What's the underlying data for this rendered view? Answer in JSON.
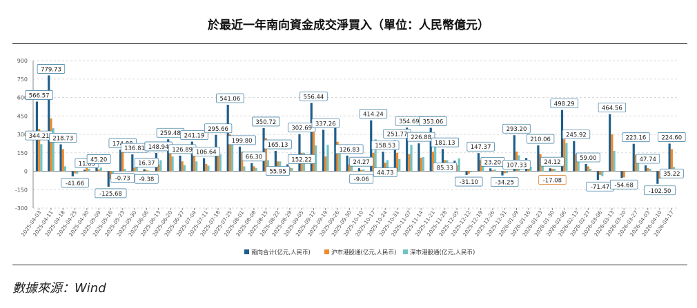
{
  "header": {
    "title": "於最近一年南向資金成交淨買入（單位：人民幣億元）"
  },
  "footer": {
    "source": "數據來源：Wind"
  },
  "colors": {
    "total": "#1f5e8a",
    "sh": "#f0892a",
    "sz": "#6fc5c5",
    "grid": "#d9d9d9",
    "axis": "#888888",
    "label_border": "#4a86a8",
    "neg_label_border": "#e0893a"
  },
  "chart_data": {
    "type": "bar",
    "ylim": [
      -300,
      900
    ],
    "yticks": [
      -300,
      -150,
      0,
      150,
      300,
      450,
      600,
      750,
      900
    ],
    "grid": true,
    "legend_position": "bottom-center",
    "categories": [
      "2025-04-03",
      "2025-04-11",
      "2025-04-18",
      "2025-04-25",
      "2025-04-30",
      "2025-05-09",
      "2025-05-16",
      "2025-05-23",
      "2025-05-30",
      "2025-06-06",
      "2025-06-13",
      "2025-06-20",
      "2025-06-27",
      "2025-07-04",
      "2025-07-11",
      "2025-07-18",
      "2025-07-25",
      "2025-08-01",
      "2025-08-08",
      "2025-08-15",
      "2025-08-22",
      "2025-08-29",
      "2025-09-05",
      "2025-09-12",
      "2025-09-19",
      "2025-09-26",
      "2025-09-30",
      "2025-10-10",
      "2025-10-17",
      "2025-10-24",
      "2025-10-31",
      "2025-11-07",
      "2025-11-14",
      "2025-11-21",
      "2025-11-28",
      "2025-12-05",
      "2025-12-12",
      "2025-12-19",
      "2025-12-26",
      "2025-12-31",
      "2026-01-09",
      "2026-01-16",
      "2026-01-23",
      "2026-01-30",
      "2026-02-06",
      "2026-02-13",
      "2026-02-27",
      "2026-03-06",
      "2026-03-13",
      "2026-03-20",
      "2026-03-27",
      "2026-04-03",
      "2026-04-10",
      "2026-04-17"
    ],
    "series": [
      {
        "name": "南向合计(亿元,人民币)",
        "values": [
          566.57,
          779.73,
          218.73,
          -41.66,
          11.85,
          45.2,
          -125.68,
          174.88,
          136.81,
          16.37,
          148.94,
          259.48,
          126.89,
          241.19,
          106.64,
          295.66,
          541.06,
          199.8,
          66.3,
          350.72,
          165.13,
          55.95,
          302.69,
          556.44,
          337.26,
          400,
          126.83,
          24.27,
          414.24,
          158.53,
          251.77,
          354.69,
          226.88,
          353.06,
          181.13,
          85.33,
          -31.1,
          147.37,
          23.2,
          -34.25,
          293.2,
          107.33,
          210.06,
          24.12,
          498.29,
          245.92,
          59.0,
          -71.47,
          464.56,
          -54.68,
          223.16,
          47.74,
          -102.5,
          224.6
        ]
      },
      {
        "name": "沪市港股通(亿元,人民币)",
        "values": [
          344.21,
          430,
          180,
          -18,
          35,
          15,
          -65,
          165,
          30,
          10,
          55,
          150,
          80,
          170,
          60,
          150,
          300,
          160,
          40,
          270,
          80,
          30,
          150,
          330,
          120,
          240,
          55,
          10,
          150,
          70,
          150,
          140,
          110,
          160,
          90,
          50,
          -20,
          90,
          8,
          -17.08,
          160,
          70,
          140,
          20,
          260,
          140,
          40,
          -30,
          300,
          -50,
          135,
          25,
          -60,
          180
        ]
      },
      {
        "name": "深市港股通(亿元,人民币)",
        "values": [
          220,
          350,
          40,
          -20,
          20,
          30,
          -60,
          20,
          105,
          5,
          90,
          120,
          50,
          80,
          45,
          140,
          240,
          40,
          25,
          90,
          80,
          25,
          150,
          210,
          215,
          160,
          72,
          15,
          260,
          90,
          100,
          215,
          115,
          195,
          90,
          105,
          -8,
          60,
          14,
          -15,
          130,
          35,
          70,
          20,
          230,
          105,
          20,
          -40,
          165,
          -5,
          85,
          20,
          -40,
          35.22
        ]
      }
    ],
    "labels": [
      {
        "i": 0,
        "text": "566.57"
      },
      {
        "i": 0,
        "text": "344.21"
      },
      {
        "i": 1,
        "text": "779.73"
      },
      {
        "i": 2,
        "text": "218.73"
      },
      {
        "i": 3,
        "text": "-41.66"
      },
      {
        "i": 4,
        "text": "11.85"
      },
      {
        "i": 5,
        "text": "45.20"
      },
      {
        "i": 6,
        "text": "-125.68"
      },
      {
        "i": 7,
        "text": "174.88"
      },
      {
        "i": 7,
        "text": "-0.73"
      },
      {
        "i": 8,
        "text": "136.81"
      },
      {
        "i": 9,
        "text": "16.37"
      },
      {
        "i": 9,
        "text": "-9.38"
      },
      {
        "i": 10,
        "text": "148.94"
      },
      {
        "i": 11,
        "text": "259.48"
      },
      {
        "i": 12,
        "text": "126.89"
      },
      {
        "i": 13,
        "text": "241.19"
      },
      {
        "i": 14,
        "text": "106.64"
      },
      {
        "i": 15,
        "text": "295.66"
      },
      {
        "i": 16,
        "text": "541.06"
      },
      {
        "i": 17,
        "text": "199.80"
      },
      {
        "i": 18,
        "text": "66.30"
      },
      {
        "i": 19,
        "text": "350.72"
      },
      {
        "i": 20,
        "text": "165.13"
      },
      {
        "i": 20,
        "text": "55.95"
      },
      {
        "i": 22,
        "text": "302.69"
      },
      {
        "i": 22,
        "text": "152.22"
      },
      {
        "i": 23,
        "text": "556.44"
      },
      {
        "i": 24,
        "text": "337.26"
      },
      {
        "i": 26,
        "text": "126.83"
      },
      {
        "i": 27,
        "text": "24.27"
      },
      {
        "i": 27,
        "text": "-9.06"
      },
      {
        "i": 28,
        "text": "414.24"
      },
      {
        "i": 29,
        "text": "158.53"
      },
      {
        "i": 29,
        "text": "44.73"
      },
      {
        "i": 30,
        "text": "251.77"
      },
      {
        "i": 31,
        "text": "354.69"
      },
      {
        "i": 32,
        "text": "226.88"
      },
      {
        "i": 33,
        "text": "353.06"
      },
      {
        "i": 34,
        "text": "181.13"
      },
      {
        "i": 34,
        "text": "85.33"
      },
      {
        "i": 36,
        "text": "-31.10"
      },
      {
        "i": 37,
        "text": "147.37"
      },
      {
        "i": 38,
        "text": "23.20"
      },
      {
        "i": 39,
        "text": "-34.25"
      },
      {
        "i": 40,
        "text": "293.20"
      },
      {
        "i": 40,
        "text": "107.33"
      },
      {
        "i": 42,
        "text": "210.06"
      },
      {
        "i": 43,
        "text": "24.12"
      },
      {
        "i": 43,
        "text": "-17.08"
      },
      {
        "i": 44,
        "text": "498.29"
      },
      {
        "i": 45,
        "text": "245.92"
      },
      {
        "i": 46,
        "text": "59.00"
      },
      {
        "i": 47,
        "text": "-71.47"
      },
      {
        "i": 48,
        "text": "464.56"
      },
      {
        "i": 49,
        "text": "-54.68"
      },
      {
        "i": 50,
        "text": "223.16"
      },
      {
        "i": 51,
        "text": "47.74"
      },
      {
        "i": 52,
        "text": "-102.50"
      },
      {
        "i": 53,
        "text": "224.60"
      },
      {
        "i": 53,
        "text": "35.22"
      }
    ]
  }
}
